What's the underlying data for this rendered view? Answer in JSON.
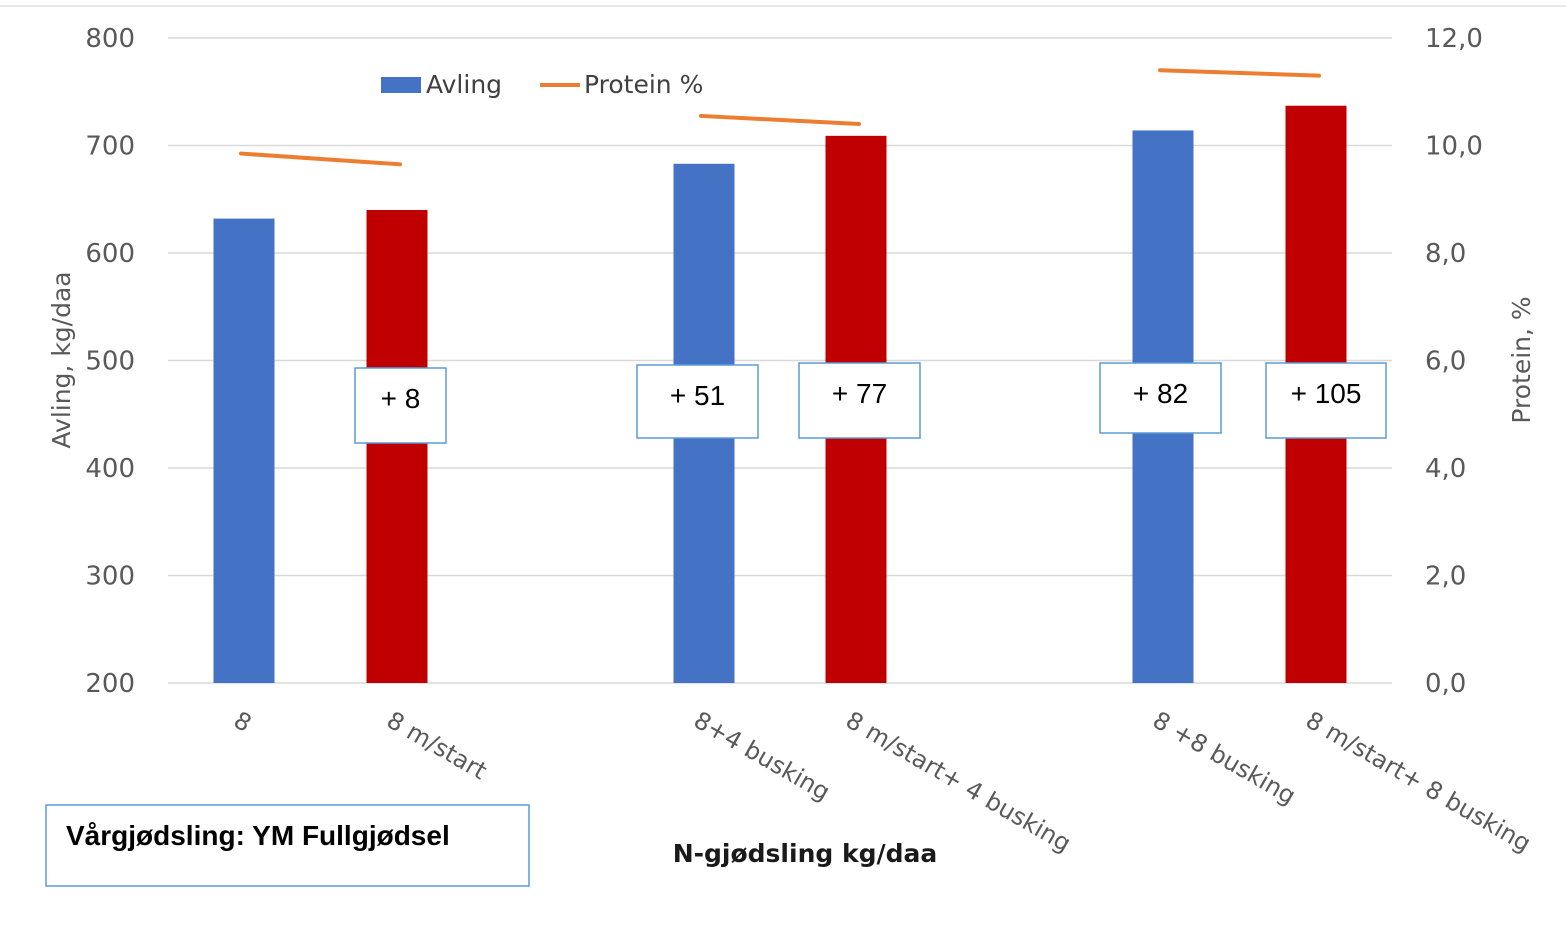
{
  "chart_data": {
    "type": "bar",
    "title": "",
    "categories": [
      "8",
      "8 m/start",
      "8+4 busking",
      "8 m/start+ 4 busking",
      "8 +8 busking",
      "8 m/start+ 8 busking"
    ],
    "groups": [
      [
        0,
        1
      ],
      [
        2,
        3
      ],
      [
        4,
        5
      ]
    ],
    "series": [
      {
        "name": "Avling",
        "type": "bar",
        "axis": "left",
        "values": [
          632,
          640,
          683,
          709,
          714,
          737
        ],
        "bar_colors": [
          "#4472c4",
          "#c00000",
          "#4472c4",
          "#c00000",
          "#4472c4",
          "#c00000"
        ]
      },
      {
        "name": "Protein %",
        "type": "line",
        "axis": "right",
        "color": "#ed7d31",
        "values": [
          9.85,
          9.65,
          10.55,
          10.4,
          11.4,
          11.3
        ]
      }
    ],
    "xlabel": "N-gjødsling kg/daa",
    "ylabel": "Avling, kg/daa",
    "y2label": "Protein, %",
    "ylim": [
      200,
      800
    ],
    "y2lim": [
      0,
      12
    ],
    "yticks": [
      "200",
      "300",
      "400",
      "500",
      "600",
      "700",
      "800"
    ],
    "y2ticks": [
      "0,0",
      "2,0",
      "4,0",
      "6,0",
      "8,0",
      "10,0",
      "12,0"
    ],
    "grid": true,
    "legend_placement": "top-left",
    "annotations": [
      {
        "text": "+ 8",
        "category_index": 1
      },
      {
        "text": "+ 51",
        "category_index": 2
      },
      {
        "text": "+ 77",
        "category_index": 3
      },
      {
        "text": "+ 82",
        "category_index": 4
      },
      {
        "text": "+ 105",
        "category_index": 5
      }
    ],
    "note": "Vårgjødsling: YM Fullgjødsel"
  }
}
